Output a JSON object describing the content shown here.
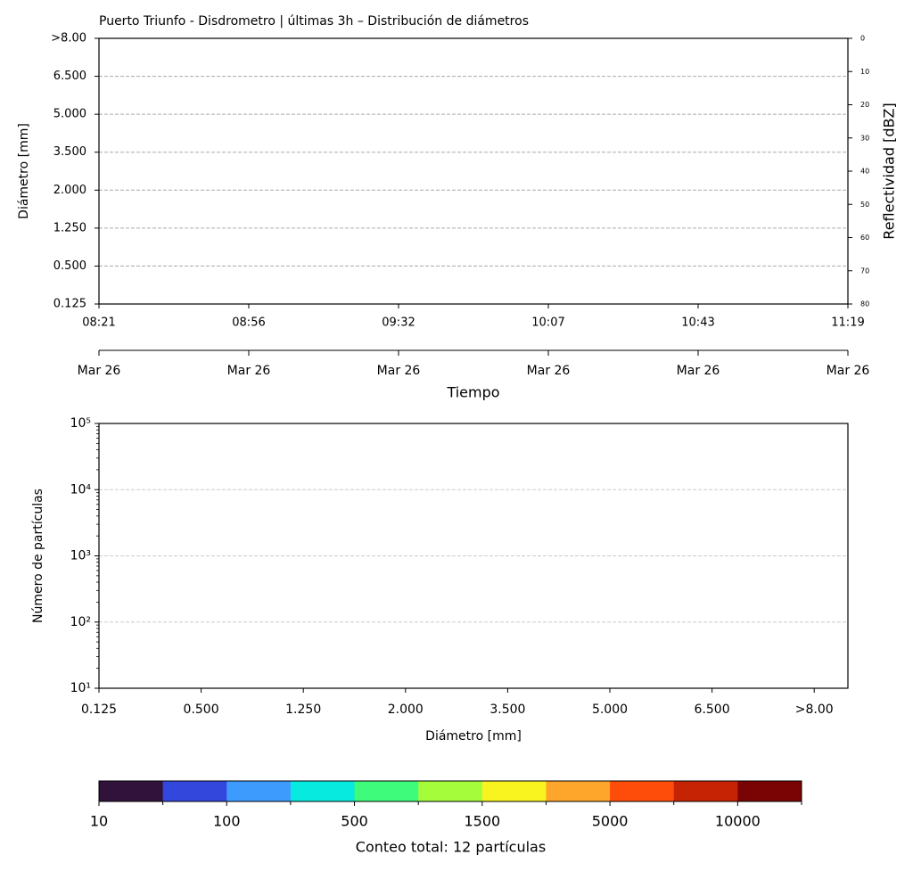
{
  "chart_data": [
    {
      "type": "heatmap",
      "title": "Puerto Triunfo - Disdrometro | últimas 3h – Distribución de diámetros",
      "ylabel": "Diámetro [mm]",
      "y_categories": [
        "0.125",
        "0.500",
        "1.250",
        "2.000",
        "3.500",
        "5.000",
        "6.500",
        ">8.00"
      ],
      "x_categories": [
        "08:21",
        "08:56",
        "09:32",
        "10:07",
        "10:43",
        "11:19"
      ],
      "x2_categories": [
        "Mar 26",
        "Mar 26",
        "Mar 26",
        "Mar 26",
        "Mar 26",
        "Mar 26"
      ],
      "xlabel": "Tiempo",
      "y2label": "Reflectividad [dBZ]",
      "y2lim": [
        80,
        0
      ],
      "y2ticks": [
        0,
        10,
        20,
        30,
        40,
        50,
        60,
        70,
        80
      ],
      "grid": true
    },
    {
      "type": "bar",
      "ylabel": "Número de partículas",
      "xlabel": "Diámetro [mm]",
      "categories": [
        "0.125",
        "0.500",
        "1.250",
        "2.000",
        "3.500",
        "5.000",
        "6.500",
        ">8.00"
      ],
      "log_scale": true,
      "ylim": [
        10,
        100000
      ],
      "yticks": [
        {
          "value": 10,
          "label": "10¹"
        },
        {
          "value": 100,
          "label": "10²"
        },
        {
          "value": 1000,
          "label": "10³"
        },
        {
          "value": 10000,
          "label": "10⁴"
        },
        {
          "value": 100000,
          "label": "10⁵"
        }
      ],
      "grid": true
    },
    {
      "type": "colorbar",
      "label": "Conteo total: 12 partículas",
      "colors": [
        "#30123b",
        "#3447dd",
        "#3e9bfe",
        "#07eae0",
        "#3ffb7c",
        "#a4fc3b",
        "#f9f41f",
        "#fea52b",
        "#fe4c0a",
        "#c62304",
        "#7a0403"
      ],
      "ticks": [
        10,
        100,
        500,
        1500,
        5000,
        10000
      ]
    }
  ]
}
